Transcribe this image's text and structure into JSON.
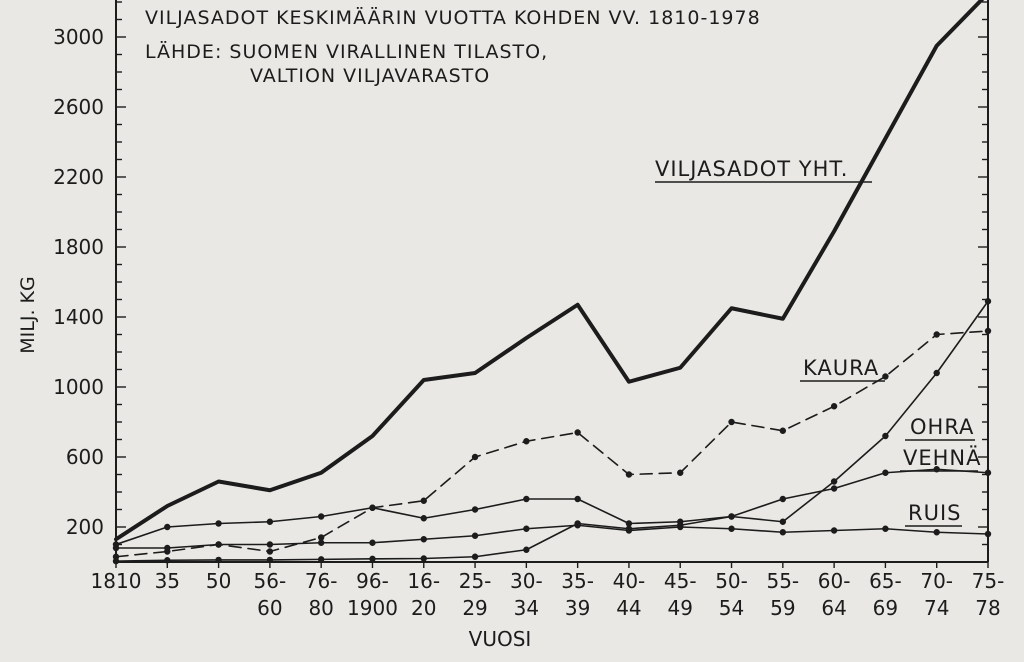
{
  "chart_data": {
    "type": "line",
    "title_lines": [
      "VILJASADOT KESKIMÄÄRIN VUOTTA KOHDEN VV. 1810-1978",
      "LÄHDE: SUOMEN VIRALLINEN TILASTO,",
      "VALTION VILJAVARASTO"
    ],
    "ylabel": "MILJ. KG",
    "xlabel": "VUOSI",
    "ylim": [
      0,
      3200
    ],
    "yticks": [
      200,
      600,
      1000,
      1400,
      1800,
      2200,
      2600,
      3000
    ],
    "categories": [
      [
        "1810"
      ],
      [
        "35"
      ],
      [
        "50"
      ],
      [
        "56-",
        "60"
      ],
      [
        "76-",
        "80"
      ],
      [
        "96-",
        "1900"
      ],
      [
        "16-",
        "20"
      ],
      [
        "25-",
        "29"
      ],
      [
        "30-",
        "34"
      ],
      [
        "35-",
        "39"
      ],
      [
        "40-",
        "44"
      ],
      [
        "45-",
        "49"
      ],
      [
        "50-",
        "54"
      ],
      [
        "55-",
        "59"
      ],
      [
        "60-",
        "64"
      ],
      [
        "65-",
        "69"
      ],
      [
        "70-",
        "74"
      ],
      [
        "75-",
        "78"
      ]
    ],
    "series": [
      {
        "name": "VILJASADOT YHT.",
        "style": "thick",
        "values": [
          130,
          320,
          460,
          410,
          510,
          720,
          1040,
          1080,
          1280,
          1470,
          1030,
          1110,
          1450,
          1390,
          1890,
          2420,
          2950,
          3250
        ]
      },
      {
        "name": "KAURA",
        "style": "dashed",
        "values": [
          30,
          60,
          100,
          60,
          140,
          310,
          350,
          600,
          690,
          740,
          500,
          510,
          800,
          750,
          890,
          1060,
          1300,
          1320
        ]
      },
      {
        "name": "OHRA",
        "style": "solid",
        "values": [
          100,
          200,
          220,
          230,
          260,
          310,
          250,
          300,
          360,
          360,
          220,
          230,
          260,
          230,
          460,
          720,
          1080,
          1490
        ]
      },
      {
        "name": "VEHNÄ",
        "style": "solid",
        "values": [
          5,
          10,
          12,
          12,
          15,
          18,
          20,
          30,
          70,
          220,
          190,
          210,
          260,
          360,
          420,
          510,
          530,
          510
        ]
      },
      {
        "name": "RUIS",
        "style": "solid",
        "values": [
          80,
          80,
          100,
          100,
          110,
          110,
          130,
          150,
          190,
          210,
          180,
          200,
          190,
          170,
          180,
          190,
          170,
          160
        ]
      }
    ]
  }
}
